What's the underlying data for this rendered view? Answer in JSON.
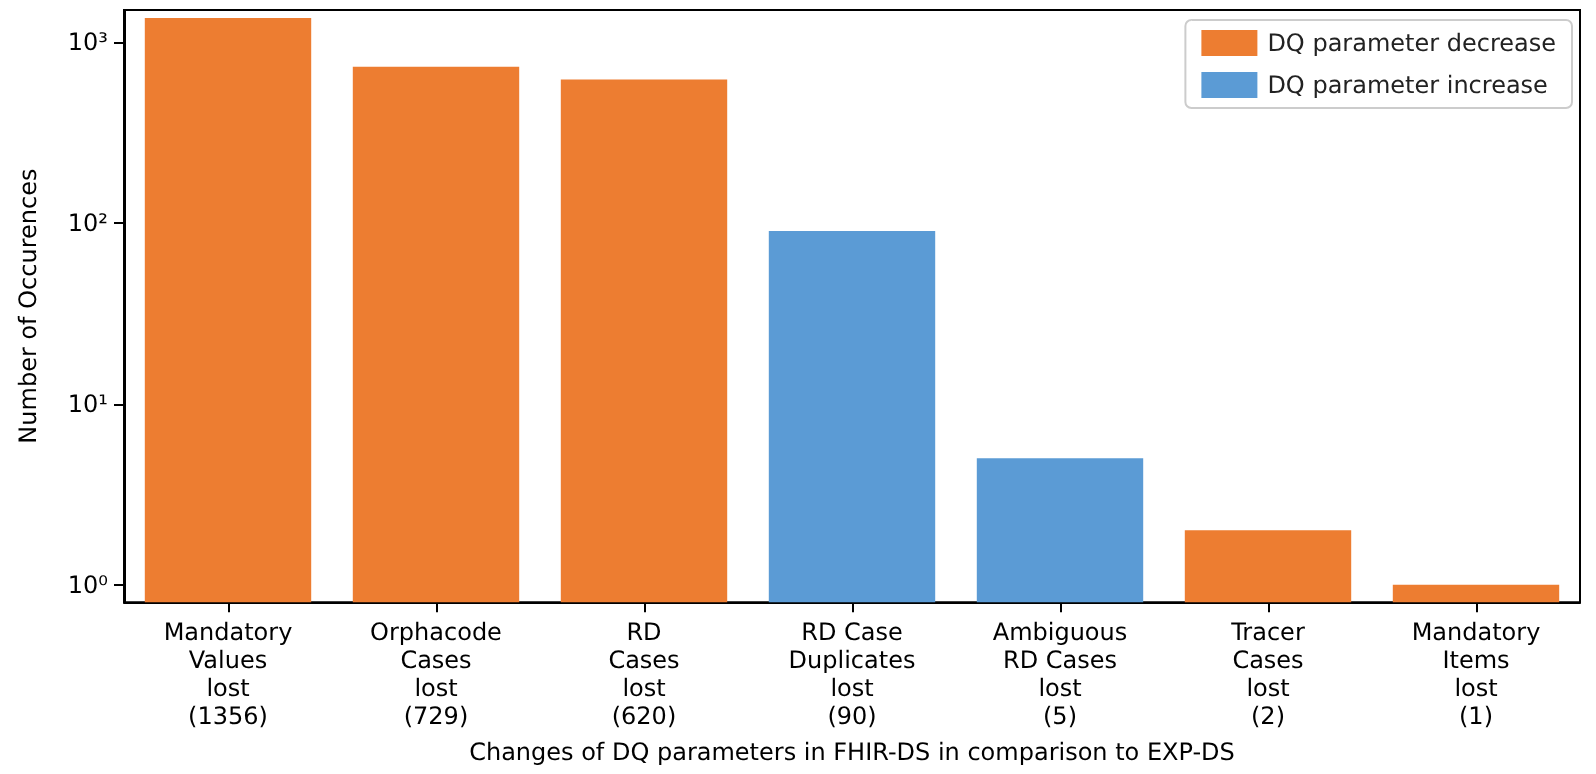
{
  "chart_data": {
    "type": "bar",
    "xlabel": "Changes of DQ parameters in FHIR-DS in comparison to EXP-DS",
    "ylabel": "Number of Occurences",
    "categories": [
      "Mandatory\nValues\nlost\n(1356)",
      "Orphacode\nCases\nlost\n(729)",
      "RD\nCases\nlost\n(620)",
      "RD Case\nDuplicates\nlost\n(90)",
      "Ambiguous\nRD Cases\nlost\n(5)",
      "Tracer\nCases\nlost\n(2)",
      "Mandatory\nItems\nlost\n(1)"
    ],
    "series": [
      {
        "name": "DQ parameter decrease",
        "color": "#ed7d31",
        "values": [
          1356,
          729,
          620,
          null,
          null,
          2,
          1
        ]
      },
      {
        "name": "DQ parameter increase",
        "color": "#5b9bd5",
        "values": [
          null,
          null,
          null,
          90,
          5,
          null,
          null
        ]
      }
    ],
    "log": "y",
    "ylim": [
      0.8,
      1500
    ],
    "yticks": [
      {
        "value": 1,
        "label": "10⁰"
      },
      {
        "value": 10,
        "label": "10¹"
      },
      {
        "value": 100,
        "label": "10²"
      },
      {
        "value": 1000,
        "label": "10³"
      }
    ],
    "grid": false,
    "legend": "top right"
  }
}
